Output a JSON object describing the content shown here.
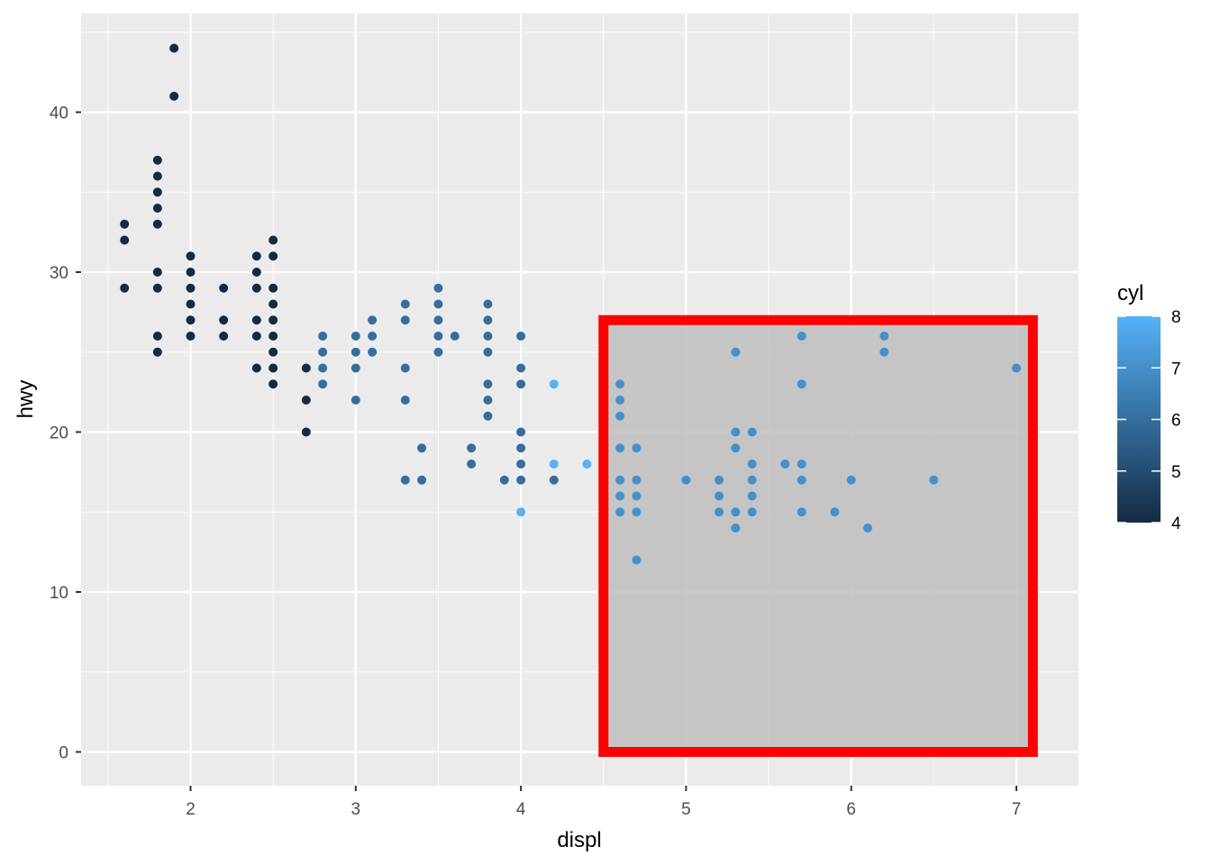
{
  "chart_data": {
    "type": "scatter",
    "xlabel": "displ",
    "ylabel": "hwy",
    "xlim": [
      1.33,
      7.37
    ],
    "ylim": [
      -2.2,
      46.2
    ],
    "x_ticks": [
      2,
      3,
      4,
      5,
      6,
      7
    ],
    "y_ticks": [
      0,
      10,
      20,
      30,
      40
    ],
    "x_tick_labels": [
      "2",
      "3",
      "4",
      "5",
      "6",
      "7"
    ],
    "y_tick_labels": [
      "0",
      "10",
      "20",
      "30",
      "40"
    ],
    "grid": true,
    "background": "#ebebeb",
    "color_scale": {
      "title": "cyl",
      "min": 4,
      "max": 8,
      "ticks": [
        4,
        5,
        6,
        7,
        8
      ],
      "tick_labels": [
        "4",
        "5",
        "6",
        "7",
        "8"
      ],
      "low_color": "#132b43",
      "high_color": "#56b1f7",
      "legend_position": "right"
    },
    "points": [
      {
        "x": 1.6,
        "y": 33,
        "cyl": 4
      },
      {
        "x": 1.6,
        "y": 32,
        "cyl": 4
      },
      {
        "x": 1.6,
        "y": 29,
        "cyl": 4
      },
      {
        "x": 1.8,
        "y": 37,
        "cyl": 4
      },
      {
        "x": 1.8,
        "y": 36,
        "cyl": 4
      },
      {
        "x": 1.8,
        "y": 35,
        "cyl": 4
      },
      {
        "x": 1.8,
        "y": 34,
        "cyl": 4
      },
      {
        "x": 1.8,
        "y": 33,
        "cyl": 4
      },
      {
        "x": 1.8,
        "y": 30,
        "cyl": 4
      },
      {
        "x": 1.8,
        "y": 29,
        "cyl": 4
      },
      {
        "x": 1.8,
        "y": 26,
        "cyl": 4
      },
      {
        "x": 1.8,
        "y": 25,
        "cyl": 4
      },
      {
        "x": 1.9,
        "y": 44,
        "cyl": 4
      },
      {
        "x": 1.9,
        "y": 41,
        "cyl": 4
      },
      {
        "x": 2.0,
        "y": 31,
        "cyl": 4
      },
      {
        "x": 2.0,
        "y": 30,
        "cyl": 4
      },
      {
        "x": 2.0,
        "y": 29,
        "cyl": 4
      },
      {
        "x": 2.0,
        "y": 28,
        "cyl": 4
      },
      {
        "x": 2.0,
        "y": 27,
        "cyl": 4
      },
      {
        "x": 2.0,
        "y": 26,
        "cyl": 4
      },
      {
        "x": 2.2,
        "y": 29,
        "cyl": 4
      },
      {
        "x": 2.2,
        "y": 27,
        "cyl": 4
      },
      {
        "x": 2.2,
        "y": 26,
        "cyl": 4
      },
      {
        "x": 2.4,
        "y": 31,
        "cyl": 4
      },
      {
        "x": 2.4,
        "y": 30,
        "cyl": 4
      },
      {
        "x": 2.4,
        "y": 29,
        "cyl": 4
      },
      {
        "x": 2.4,
        "y": 27,
        "cyl": 4
      },
      {
        "x": 2.4,
        "y": 26,
        "cyl": 4
      },
      {
        "x": 2.4,
        "y": 24,
        "cyl": 4
      },
      {
        "x": 2.5,
        "y": 32,
        "cyl": 4
      },
      {
        "x": 2.5,
        "y": 31,
        "cyl": 4
      },
      {
        "x": 2.5,
        "y": 29,
        "cyl": 4
      },
      {
        "x": 2.5,
        "y": 28,
        "cyl": 4
      },
      {
        "x": 2.5,
        "y": 27,
        "cyl": 4
      },
      {
        "x": 2.5,
        "y": 26,
        "cyl": 4
      },
      {
        "x": 2.5,
        "y": 25,
        "cyl": 4
      },
      {
        "x": 2.5,
        "y": 24,
        "cyl": 4
      },
      {
        "x": 2.5,
        "y": 23,
        "cyl": 4
      },
      {
        "x": 2.7,
        "y": 24,
        "cyl": 4
      },
      {
        "x": 2.7,
        "y": 22,
        "cyl": 4
      },
      {
        "x": 2.7,
        "y": 20,
        "cyl": 4
      },
      {
        "x": 2.8,
        "y": 26,
        "cyl": 6
      },
      {
        "x": 2.8,
        "y": 25,
        "cyl": 6
      },
      {
        "x": 2.8,
        "y": 24,
        "cyl": 6
      },
      {
        "x": 2.8,
        "y": 23,
        "cyl": 6
      },
      {
        "x": 3.0,
        "y": 26,
        "cyl": 6
      },
      {
        "x": 3.0,
        "y": 25,
        "cyl": 6
      },
      {
        "x": 3.0,
        "y": 24,
        "cyl": 6
      },
      {
        "x": 3.0,
        "y": 22,
        "cyl": 6
      },
      {
        "x": 3.1,
        "y": 27,
        "cyl": 6
      },
      {
        "x": 3.1,
        "y": 26,
        "cyl": 6
      },
      {
        "x": 3.1,
        "y": 25,
        "cyl": 6
      },
      {
        "x": 3.3,
        "y": 28,
        "cyl": 6
      },
      {
        "x": 3.3,
        "y": 27,
        "cyl": 6
      },
      {
        "x": 3.3,
        "y": 24,
        "cyl": 6
      },
      {
        "x": 3.3,
        "y": 22,
        "cyl": 6
      },
      {
        "x": 3.3,
        "y": 17,
        "cyl": 6
      },
      {
        "x": 3.4,
        "y": 19,
        "cyl": 6
      },
      {
        "x": 3.4,
        "y": 17,
        "cyl": 6
      },
      {
        "x": 3.5,
        "y": 29,
        "cyl": 6
      },
      {
        "x": 3.5,
        "y": 28,
        "cyl": 6
      },
      {
        "x": 3.5,
        "y": 27,
        "cyl": 6
      },
      {
        "x": 3.5,
        "y": 26,
        "cyl": 6
      },
      {
        "x": 3.5,
        "y": 25,
        "cyl": 6
      },
      {
        "x": 3.6,
        "y": 26,
        "cyl": 6
      },
      {
        "x": 3.7,
        "y": 19,
        "cyl": 6
      },
      {
        "x": 3.7,
        "y": 18,
        "cyl": 6
      },
      {
        "x": 3.8,
        "y": 28,
        "cyl": 6
      },
      {
        "x": 3.8,
        "y": 27,
        "cyl": 6
      },
      {
        "x": 3.8,
        "y": 26,
        "cyl": 6
      },
      {
        "x": 3.8,
        "y": 25,
        "cyl": 6
      },
      {
        "x": 3.8,
        "y": 23,
        "cyl": 6
      },
      {
        "x": 3.8,
        "y": 22,
        "cyl": 6
      },
      {
        "x": 3.8,
        "y": 21,
        "cyl": 6
      },
      {
        "x": 3.9,
        "y": 17,
        "cyl": 6
      },
      {
        "x": 4.0,
        "y": 26,
        "cyl": 6
      },
      {
        "x": 4.0,
        "y": 24,
        "cyl": 6
      },
      {
        "x": 4.0,
        "y": 23,
        "cyl": 6
      },
      {
        "x": 4.0,
        "y": 20,
        "cyl": 6
      },
      {
        "x": 4.0,
        "y": 19,
        "cyl": 6
      },
      {
        "x": 4.0,
        "y": 18,
        "cyl": 6
      },
      {
        "x": 4.0,
        "y": 17,
        "cyl": 6
      },
      {
        "x": 4.0,
        "y": 15,
        "cyl": 8
      },
      {
        "x": 4.2,
        "y": 23,
        "cyl": 8
      },
      {
        "x": 4.2,
        "y": 18,
        "cyl": 8
      },
      {
        "x": 4.2,
        "y": 17,
        "cyl": 6
      },
      {
        "x": 4.4,
        "y": 18,
        "cyl": 8
      },
      {
        "x": 4.6,
        "y": 23,
        "cyl": 7
      },
      {
        "x": 4.6,
        "y": 22,
        "cyl": 7
      },
      {
        "x": 4.6,
        "y": 21,
        "cyl": 7
      },
      {
        "x": 4.6,
        "y": 19,
        "cyl": 7
      },
      {
        "x": 4.6,
        "y": 17,
        "cyl": 7
      },
      {
        "x": 4.6,
        "y": 16,
        "cyl": 7
      },
      {
        "x": 4.6,
        "y": 15,
        "cyl": 7
      },
      {
        "x": 4.7,
        "y": 19,
        "cyl": 7
      },
      {
        "x": 4.7,
        "y": 17,
        "cyl": 7
      },
      {
        "x": 4.7,
        "y": 16,
        "cyl": 7
      },
      {
        "x": 4.7,
        "y": 15,
        "cyl": 7
      },
      {
        "x": 4.7,
        "y": 12,
        "cyl": 7
      },
      {
        "x": 5.0,
        "y": 17,
        "cyl": 7
      },
      {
        "x": 5.2,
        "y": 17,
        "cyl": 7
      },
      {
        "x": 5.2,
        "y": 16,
        "cyl": 7
      },
      {
        "x": 5.2,
        "y": 15,
        "cyl": 7
      },
      {
        "x": 5.3,
        "y": 25,
        "cyl": 7
      },
      {
        "x": 5.3,
        "y": 20,
        "cyl": 7
      },
      {
        "x": 5.3,
        "y": 19,
        "cyl": 7
      },
      {
        "x": 5.3,
        "y": 15,
        "cyl": 7
      },
      {
        "x": 5.3,
        "y": 14,
        "cyl": 7
      },
      {
        "x": 5.4,
        "y": 20,
        "cyl": 7
      },
      {
        "x": 5.4,
        "y": 18,
        "cyl": 7
      },
      {
        "x": 5.4,
        "y": 17,
        "cyl": 7
      },
      {
        "x": 5.4,
        "y": 16,
        "cyl": 7
      },
      {
        "x": 5.4,
        "y": 15,
        "cyl": 7
      },
      {
        "x": 5.6,
        "y": 18,
        "cyl": 7
      },
      {
        "x": 5.7,
        "y": 26,
        "cyl": 7
      },
      {
        "x": 5.7,
        "y": 23,
        "cyl": 7
      },
      {
        "x": 5.7,
        "y": 18,
        "cyl": 7
      },
      {
        "x": 5.7,
        "y": 17,
        "cyl": 7
      },
      {
        "x": 5.7,
        "y": 15,
        "cyl": 7
      },
      {
        "x": 5.9,
        "y": 15,
        "cyl": 7
      },
      {
        "x": 6.0,
        "y": 17,
        "cyl": 7
      },
      {
        "x": 6.1,
        "y": 14,
        "cyl": 7
      },
      {
        "x": 6.2,
        "y": 26,
        "cyl": 7
      },
      {
        "x": 6.2,
        "y": 25,
        "cyl": 7
      },
      {
        "x": 6.5,
        "y": 17,
        "cyl": 7
      },
      {
        "x": 7.0,
        "y": 24,
        "cyl": 7
      }
    ],
    "annotation": {
      "type": "highlight-rectangle",
      "x_range": [
        4.5,
        7.1
      ],
      "y_range": [
        0,
        27
      ],
      "fill": "#bebebe",
      "border_color": "#ff0000"
    }
  }
}
